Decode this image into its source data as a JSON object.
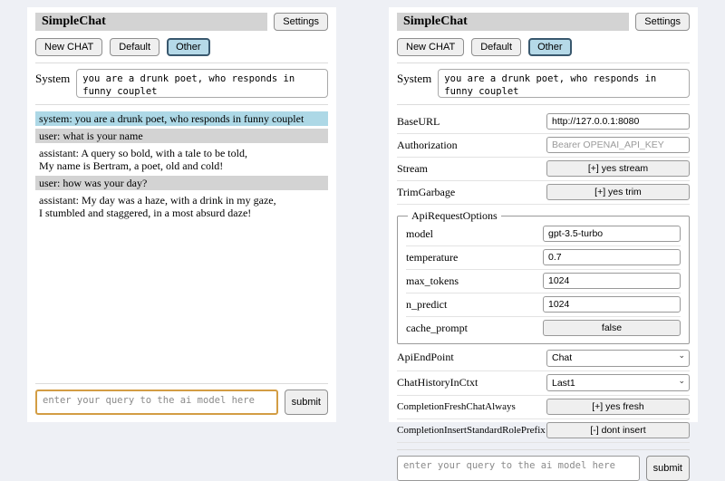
{
  "app": {
    "title": "SimpleChat",
    "settings_button": "Settings"
  },
  "toolbar": {
    "new_chat_button": "New CHAT",
    "session_default": "Default",
    "session_other": "Other"
  },
  "system_prompt": {
    "label": "System",
    "value": "you are a drunk poet, who responds in funny couplet"
  },
  "chat": {
    "messages": [
      {
        "role": "system",
        "text": "system: you are a drunk poet, who responds in funny couplet"
      },
      {
        "role": "user",
        "text": "user: what is your name"
      },
      {
        "role": "assistant",
        "text": "assistant: A query so bold, with a tale to be told,\nMy name is Bertram, a poet, old and cold!"
      },
      {
        "role": "user",
        "text": "user: how was your day?"
      },
      {
        "role": "assistant",
        "text": "assistant: My day was a haze, with a drink in my gaze,\nI stumbled and staggered, in a most absurd daze!"
      }
    ]
  },
  "settings": {
    "base_url": {
      "label": "BaseURL",
      "value": "http://127.0.0.1:8080"
    },
    "authorization": {
      "label": "Authorization",
      "placeholder": "Bearer OPENAI_API_KEY"
    },
    "stream": {
      "label": "Stream",
      "button": "[+] yes stream"
    },
    "trim_garbage": {
      "label": "TrimGarbage",
      "button": "[+] yes trim"
    },
    "api_request_options": {
      "legend": "ApiRequestOptions",
      "model": {
        "label": "model",
        "value": "gpt-3.5-turbo"
      },
      "temperature": {
        "label": "temperature",
        "value": "0.7"
      },
      "max_tokens": {
        "label": "max_tokens",
        "value": "1024"
      },
      "n_predict": {
        "label": "n_predict",
        "value": "1024"
      },
      "cache_prompt": {
        "label": "cache_prompt",
        "button": "false"
      }
    },
    "api_endpoint": {
      "label": "ApiEndPoint",
      "value": "Chat"
    },
    "chat_history_in_ctxt": {
      "label": "ChatHistoryInCtxt",
      "value": "Last1"
    },
    "completion_fresh_chat_always": {
      "label": "CompletionFreshChatAlways",
      "button": "[+] yes fresh"
    },
    "completion_insert_standard_role_prefix": {
      "label": "CompletionInsertStandardRolePrefix",
      "button": "[-] dont insert"
    }
  },
  "query": {
    "placeholder": "enter your query to the ai model here",
    "submit_button": "submit"
  },
  "icons": {
    "chevron_down": "⌄"
  },
  "colors": {
    "page_bg": "#eef0f5",
    "heading_bg": "#d3d3d3",
    "system_msg_bg": "#add8e6",
    "user_msg_bg": "#d3d3d3",
    "selected_session_bg": "#b5d9e8",
    "focused_query_border": "#d39d44"
  }
}
